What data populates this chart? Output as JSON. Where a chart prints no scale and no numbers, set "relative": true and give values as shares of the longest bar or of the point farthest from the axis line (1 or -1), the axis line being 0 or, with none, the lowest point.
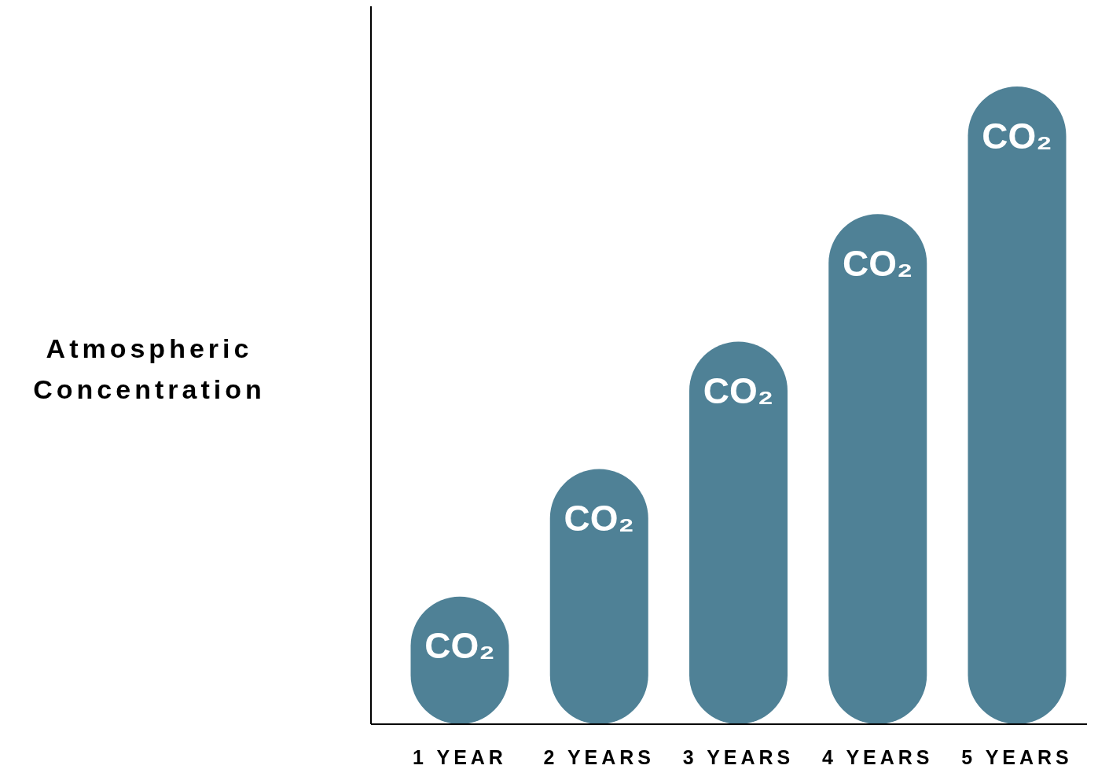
{
  "chart_data": {
    "type": "bar",
    "ylabel": "Atmospheric Concentration",
    "categories": [
      "1 YEAR",
      "2 YEARS",
      "3 YEARS",
      "4 YEARS",
      "5 YEARS"
    ],
    "relative": true,
    "series": [
      {
        "name": "CO₂",
        "color": "#4f8196",
        "values": [
          0.2,
          0.4,
          0.6,
          0.8,
          1
        ]
      }
    ]
  }
}
